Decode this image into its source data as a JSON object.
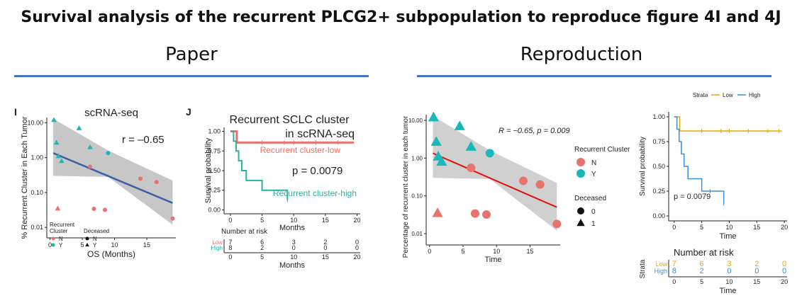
{
  "page": {
    "title": "Survival analysis of the recurrent PLCG2+ subpopulation to reproduce figure 4I and 4J",
    "left_header": "Paper",
    "right_header": "Reproduction",
    "accent_color": "#4472c4"
  },
  "colors": {
    "N": "#e8736c",
    "Y": "#19b7b7",
    "low_paper": "#e8736c",
    "high_paper": "#2bb0a4",
    "low_repro": "#e6a800",
    "high_repro": "#3d8fd6",
    "fit_paper": "#3a5ea8",
    "fit_repro": "#e01010"
  },
  "chart_data": [
    {
      "id": "paper-scatter",
      "type": "scatter",
      "panel_letter": "I",
      "title": "scRNA-seq",
      "xlabel": "OS (Months)",
      "ylabel": "% Recurrent Cluster in Each Tumor",
      "xlim": [
        -0.5,
        19.5
      ],
      "ylim_log10": [
        -2.3,
        1.15
      ],
      "x_ticks": [
        0,
        5,
        10,
        15
      ],
      "y_ticks": [
        {
          "v": 10,
          "label": "10.00"
        },
        {
          "v": 1,
          "label": "1.00"
        },
        {
          "v": 0.1,
          "label": "0.10"
        },
        {
          "v": 0.01,
          "label": "0.01"
        }
      ],
      "annotation": "r = –0.65",
      "fit": {
        "x": [
          0.5,
          19
        ],
        "y": [
          1.35,
          0.05
        ]
      },
      "legend": {
        "cluster_title": "Recurrent Cluster",
        "deceased_title": "Deceased",
        "cluster_items": [
          "N",
          "Y"
        ],
        "deceased_items": [
          "N",
          "Y"
        ]
      },
      "points": [
        {
          "x": 0.6,
          "y": 12.0,
          "cluster": "Y",
          "deceased": "Y"
        },
        {
          "x": 1.0,
          "y": 2.7,
          "cluster": "Y",
          "deceased": "Y"
        },
        {
          "x": 1.3,
          "y": 1.1,
          "cluster": "Y",
          "deceased": "Y"
        },
        {
          "x": 1.8,
          "y": 0.8,
          "cluster": "Y",
          "deceased": "Y"
        },
        {
          "x": 4.5,
          "y": 7.0,
          "cluster": "Y",
          "deceased": "Y"
        },
        {
          "x": 6.2,
          "y": 2.0,
          "cluster": "Y",
          "deceased": "Y"
        },
        {
          "x": 9.0,
          "y": 1.35,
          "cluster": "Y",
          "deceased": "N"
        },
        {
          "x": 1.2,
          "y": 0.035,
          "cluster": "N",
          "deceased": "Y"
        },
        {
          "x": 6.2,
          "y": 0.55,
          "cluster": "N",
          "deceased": "N"
        },
        {
          "x": 6.8,
          "y": 0.034,
          "cluster": "N",
          "deceased": "N"
        },
        {
          "x": 8.5,
          "y": 0.032,
          "cluster": "N",
          "deceased": "N"
        },
        {
          "x": 14.0,
          "y": 0.25,
          "cluster": "N",
          "deceased": "N"
        },
        {
          "x": 16.5,
          "y": 0.2,
          "cluster": "N",
          "deceased": "N"
        },
        {
          "x": 19.0,
          "y": 0.018,
          "cluster": "N",
          "deceased": "N"
        }
      ]
    },
    {
      "id": "paper-km",
      "type": "line",
      "panel_letter": "J",
      "title_line1": "Recurrent SCLC cluster",
      "title_line2": "in scRNA-seq",
      "xlabel": "Months",
      "ylabel": "Survival probability",
      "xlim": [
        -1,
        20.5
      ],
      "ylim": [
        -0.05,
        1.05
      ],
      "x_ticks": [
        0,
        5,
        10,
        15,
        20
      ],
      "y_ticks": [
        {
          "v": 1,
          "label": "1.00"
        },
        {
          "v": 0.75,
          "label": "0.75"
        },
        {
          "v": 0.5,
          "label": "0.50"
        },
        {
          "v": 0.25,
          "label": "0.25"
        },
        {
          "v": 0,
          "label": "0.00"
        }
      ],
      "pvalue": "p = 0.0079",
      "series": [
        {
          "name": "Recurrent cluster-low",
          "key": "low",
          "x": [
            0,
            1,
            19.5
          ],
          "y": [
            1.0,
            0.857,
            0.857
          ],
          "censor_x": [
            5,
            8.5,
            10,
            13.5,
            17
          ]
        },
        {
          "name": "Recurrent cluster-high",
          "key": "high",
          "x": [
            0,
            0.5,
            0.9,
            1.3,
            1.8,
            2.5,
            5,
            9
          ],
          "y": [
            1.0,
            0.875,
            0.75,
            0.625,
            0.5,
            0.375,
            0.25,
            0.125
          ],
          "censor_x": [
            9
          ]
        }
      ],
      "risk_table": {
        "title": "Number at risk",
        "xlabel": "Months",
        "rows": [
          {
            "label": "Low",
            "values": [
              "7",
              "6",
              "3",
              "2",
              "0"
            ]
          },
          {
            "label": "High",
            "values": [
              "8",
              "2",
              "0",
              "0",
              "0"
            ]
          }
        ]
      }
    },
    {
      "id": "repro-scatter",
      "type": "scatter",
      "xlabel": "Time",
      "ylabel": "Percentage of recurrent cluster in each tumor",
      "xlim": [
        -0.5,
        19.5
      ],
      "ylim_log10": [
        -2.3,
        1.15
      ],
      "x_ticks": [
        0,
        5,
        10,
        15
      ],
      "y_ticks": [
        {
          "v": 10,
          "label": "10.00"
        },
        {
          "v": 1,
          "label": "1.00"
        },
        {
          "v": 0.1,
          "label": "0.10"
        },
        {
          "v": 0.01,
          "label": "0.01"
        }
      ],
      "annotation": "R = −0.65, p = 0.009",
      "fit": {
        "x": [
          0.5,
          19
        ],
        "y": [
          1.35,
          0.05
        ]
      },
      "legend": {
        "cluster_title": "Recurrent Cluster",
        "deceased_title": "Deceased",
        "cluster_items": [
          "N",
          "Y"
        ],
        "deceased_items": [
          "0",
          "1"
        ]
      },
      "points": [
        {
          "x": 0.6,
          "y": 12.0,
          "cluster": "Y",
          "deceased": "Y"
        },
        {
          "x": 1.0,
          "y": 2.7,
          "cluster": "Y",
          "deceased": "Y"
        },
        {
          "x": 1.3,
          "y": 1.1,
          "cluster": "Y",
          "deceased": "Y"
        },
        {
          "x": 1.8,
          "y": 0.8,
          "cluster": "Y",
          "deceased": "Y"
        },
        {
          "x": 4.5,
          "y": 7.0,
          "cluster": "Y",
          "deceased": "Y"
        },
        {
          "x": 6.2,
          "y": 2.0,
          "cluster": "Y",
          "deceased": "Y"
        },
        {
          "x": 9.0,
          "y": 1.35,
          "cluster": "Y",
          "deceased": "N"
        },
        {
          "x": 1.2,
          "y": 0.035,
          "cluster": "N",
          "deceased": "Y"
        },
        {
          "x": 6.2,
          "y": 0.55,
          "cluster": "N",
          "deceased": "N"
        },
        {
          "x": 6.8,
          "y": 0.034,
          "cluster": "N",
          "deceased": "N"
        },
        {
          "x": 8.5,
          "y": 0.032,
          "cluster": "N",
          "deceased": "N"
        },
        {
          "x": 14.0,
          "y": 0.25,
          "cluster": "N",
          "deceased": "N"
        },
        {
          "x": 16.5,
          "y": 0.2,
          "cluster": "N",
          "deceased": "N"
        },
        {
          "x": 19.0,
          "y": 0.018,
          "cluster": "N",
          "deceased": "N"
        }
      ]
    },
    {
      "id": "repro-km",
      "type": "line",
      "xlabel": "Time",
      "ylabel": "Survival probability",
      "legend_title": "Strata",
      "xlim": [
        -1,
        20.5
      ],
      "ylim": [
        -0.05,
        1.05
      ],
      "x_ticks": [
        0,
        5,
        10,
        15,
        20
      ],
      "y_ticks": [
        {
          "v": 1,
          "label": "1.00"
        },
        {
          "v": 0.75,
          "label": "0.75"
        },
        {
          "v": 0.5,
          "label": "0.50"
        },
        {
          "v": 0.25,
          "label": "0.25"
        },
        {
          "v": 0,
          "label": "0.00"
        }
      ],
      "pvalue": "p = 0.0079",
      "series": [
        {
          "name": "Low",
          "key": "low",
          "x": [
            0,
            1,
            19.5
          ],
          "y": [
            1.0,
            0.857,
            0.857
          ],
          "censor_x": [
            5,
            8.5,
            10,
            13.5,
            17,
            19
          ]
        },
        {
          "name": "High",
          "key": "high",
          "x": [
            0,
            0.5,
            0.9,
            1.3,
            1.8,
            2.5,
            5,
            9
          ],
          "y": [
            1.0,
            0.875,
            0.75,
            0.625,
            0.5,
            0.375,
            0.25,
            0.125
          ],
          "censor_x": [
            6.5,
            9
          ]
        }
      ],
      "risk_table": {
        "title": "Number at risk",
        "ylabel": "Strata",
        "xlabel": "Time",
        "rows": [
          {
            "label": "Low",
            "values": [
              "7",
              "6",
              "3",
              "2",
              "0"
            ]
          },
          {
            "label": "High",
            "values": [
              "8",
              "2",
              "0",
              "0",
              "0"
            ]
          }
        ]
      }
    }
  ]
}
